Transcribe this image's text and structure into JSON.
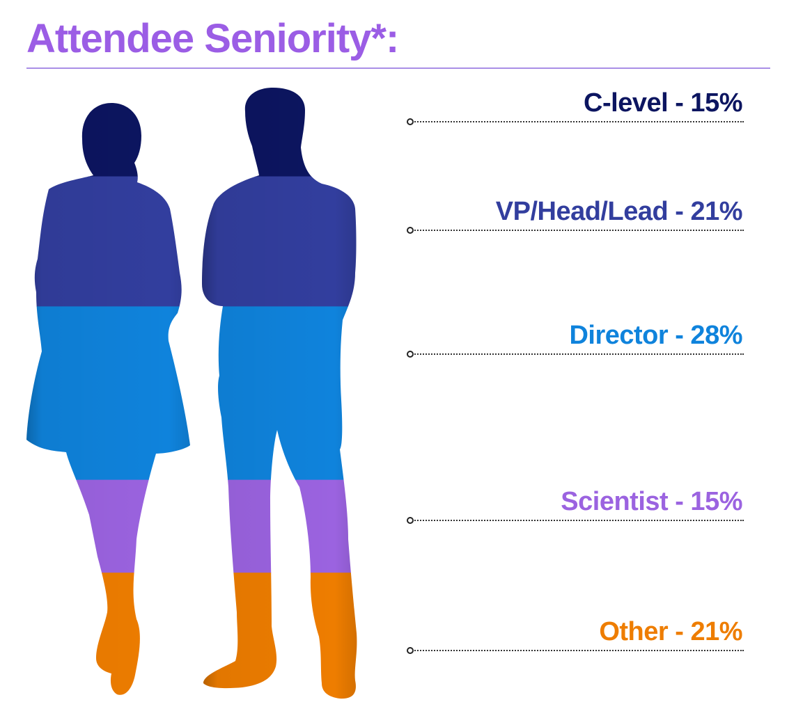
{
  "title": "Attendee Seniority*:",
  "colors": {
    "title": "#9b5de5",
    "rule": "#a98ee6",
    "c_level": "#0c1560",
    "vp_head_lead": "#323e9e",
    "director": "#0f83dc",
    "scientist": "#9b63e0",
    "other": "#ee7d00"
  },
  "chart_data": {
    "type": "stacked-silhouette",
    "title": "Attendee Seniority*:",
    "unit": "%",
    "categories": [
      "C-level",
      "VP/Head/Lead",
      "Director",
      "Scientist",
      "Other"
    ],
    "values": [
      15,
      21,
      28,
      15,
      21
    ],
    "labels": [
      "C-level - 15%",
      "VP/Head/Lead - 21%",
      "Director - 28%",
      "Scientist - 15%",
      "Other - 21%"
    ],
    "colors": [
      "#0c1560",
      "#323e9e",
      "#0f83dc",
      "#9b63e0",
      "#ee7d00"
    ],
    "legend_placement": "right"
  }
}
